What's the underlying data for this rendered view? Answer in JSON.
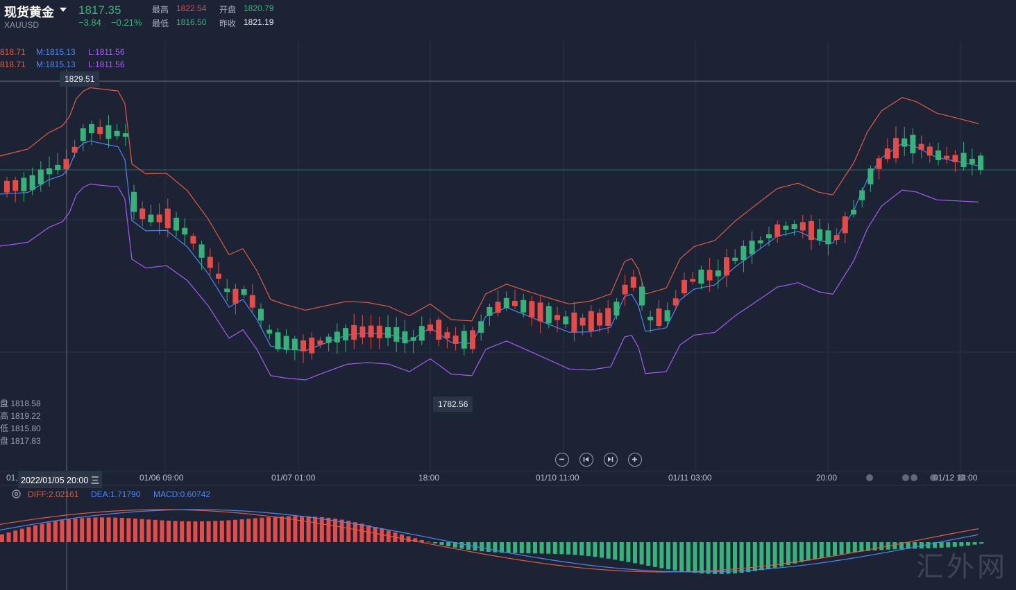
{
  "header": {
    "instrument_name": "现货黄金",
    "symbol": "XAUUSD",
    "price": "1817.35",
    "change": "−3.84",
    "change_pct": "−0.21%",
    "high_label": "最高",
    "high_value": "1822.54",
    "open_label": "开盘",
    "open_value": "1820.79",
    "low_label": "最低",
    "low_value": "1816.50",
    "prev_close_label": "昨收",
    "prev_close_value": "1821.19"
  },
  "boll": {
    "row1": {
      "up": "818.71",
      "mid": "M:1815.13",
      "low": "L:1811.56"
    },
    "row2": {
      "up": "818.71",
      "mid": "M:1815.13",
      "low": "L:1811.56"
    }
  },
  "tooltips": {
    "high_marker": "1829.51",
    "low_marker": "1782.56"
  },
  "ohlc_panel": {
    "open": "盘 1818.58",
    "high": "高 1819.22",
    "low": "低 1815.80",
    "close": "盘 1817.83"
  },
  "time_axis": {
    "cursor_label": "2022/01/05 20:00 三",
    "left_partial": "01,",
    "ticks": [
      "01/06 09:00",
      "01/07 01:00",
      "18:00",
      "01/10 11:00",
      "01/11 03:00",
      "20:00",
      "01/12 13:00"
    ]
  },
  "controls": {
    "zoom_out": "−",
    "prev": "⏮",
    "next": "⏭",
    "zoom_in": "+"
  },
  "macd": {
    "diff": "DIFF:2.02161",
    "dea": "DEA:1.71790",
    "macd": "MACD:0.60742",
    "settings_icon": "gear-icon"
  },
  "watermark": "汇外网",
  "colors": {
    "background": "#1c2334",
    "up": "#e54b47",
    "down": "#35b37a",
    "boll_upper": "#e35b40",
    "boll_mid": "#4f86f0",
    "boll_lower": "#a65cf2"
  }
}
